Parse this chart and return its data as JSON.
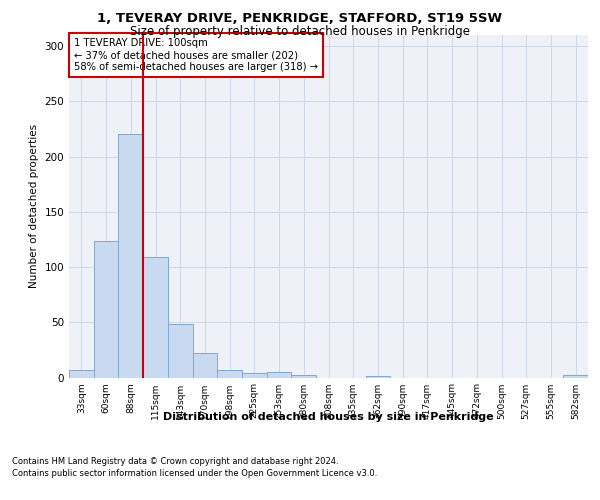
{
  "title_line1": "1, TEVERAY DRIVE, PENKRIDGE, STAFFORD, ST19 5SW",
  "title_line2": "Size of property relative to detached houses in Penkridge",
  "xlabel": "Distribution of detached houses by size in Penkridge",
  "ylabel": "Number of detached properties",
  "bin_labels": [
    "33sqm",
    "60sqm",
    "88sqm",
    "115sqm",
    "143sqm",
    "170sqm",
    "198sqm",
    "225sqm",
    "253sqm",
    "280sqm",
    "308sqm",
    "335sqm",
    "362sqm",
    "390sqm",
    "417sqm",
    "445sqm",
    "472sqm",
    "500sqm",
    "527sqm",
    "555sqm",
    "582sqm"
  ],
  "bar_values": [
    7,
    124,
    220,
    109,
    48,
    22,
    7,
    4,
    5,
    2,
    0,
    0,
    1,
    0,
    0,
    0,
    0,
    0,
    0,
    0,
    2
  ],
  "bar_color": "#c9d9f0",
  "bar_edge_color": "#7fa8d0",
  "grid_color": "#d0d8e8",
  "bg_color": "#eef2f8",
  "vline_color": "#cc0000",
  "annotation_text": "1 TEVERAY DRIVE: 100sqm\n← 37% of detached houses are smaller (202)\n58% of semi-detached houses are larger (318) →",
  "annotation_box_color": "#ffffff",
  "annotation_box_edge": "#cc0000",
  "ylim": [
    0,
    310
  ],
  "yticks": [
    0,
    50,
    100,
    150,
    200,
    250,
    300
  ],
  "footer_line1": "Contains HM Land Registry data © Crown copyright and database right 2024.",
  "footer_line2": "Contains public sector information licensed under the Open Government Licence v3.0."
}
